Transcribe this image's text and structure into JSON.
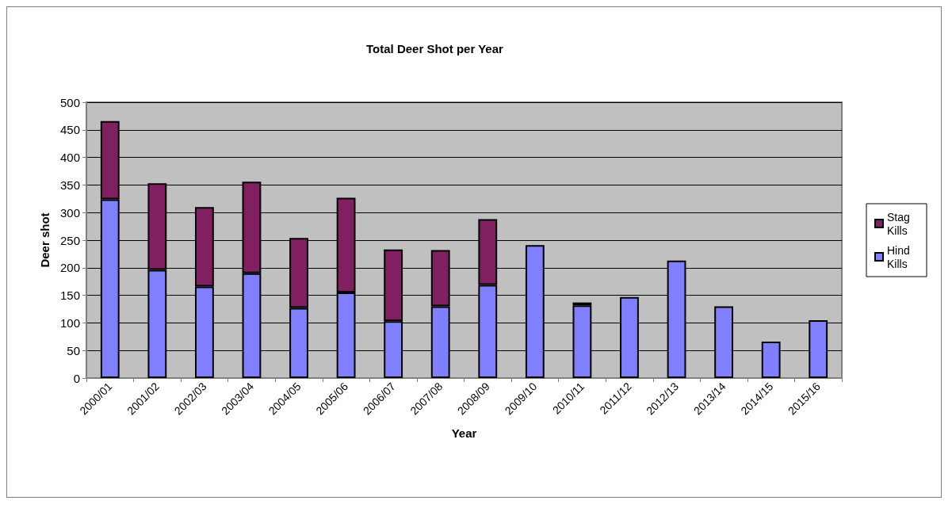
{
  "chart_data": {
    "type": "bar",
    "title": "Total Deer Shot per Year",
    "xlabel": "Year",
    "ylabel": "Deer shot",
    "stacked": true,
    "categories": [
      "2000/01",
      "2001/02",
      "2002/03",
      "2003/04",
      "2004/05",
      "2005/06",
      "2006/07",
      "2007/08",
      "2008/09",
      "2009/10",
      "2010/11",
      "2011/12",
      "2012/13",
      "2013/14",
      "2014/15",
      "2015/16"
    ],
    "series": [
      {
        "name": "Hind Kills",
        "color": "#8080ff",
        "values": [
          324,
          196,
          166,
          190,
          127,
          155,
          103,
          130,
          169,
          241,
          132,
          147,
          213,
          130,
          66,
          105
        ]
      },
      {
        "name": "Stag Kills",
        "color": "#802060",
        "values": [
          142,
          157,
          144,
          166,
          127,
          172,
          130,
          102,
          119,
          0,
          5,
          0,
          0,
          0,
          0,
          0
        ]
      }
    ],
    "ylim": [
      0,
      500
    ],
    "yticks": [
      0,
      50,
      100,
      150,
      200,
      250,
      300,
      350,
      400,
      450,
      500
    ],
    "grid": "y",
    "legend": "right"
  }
}
